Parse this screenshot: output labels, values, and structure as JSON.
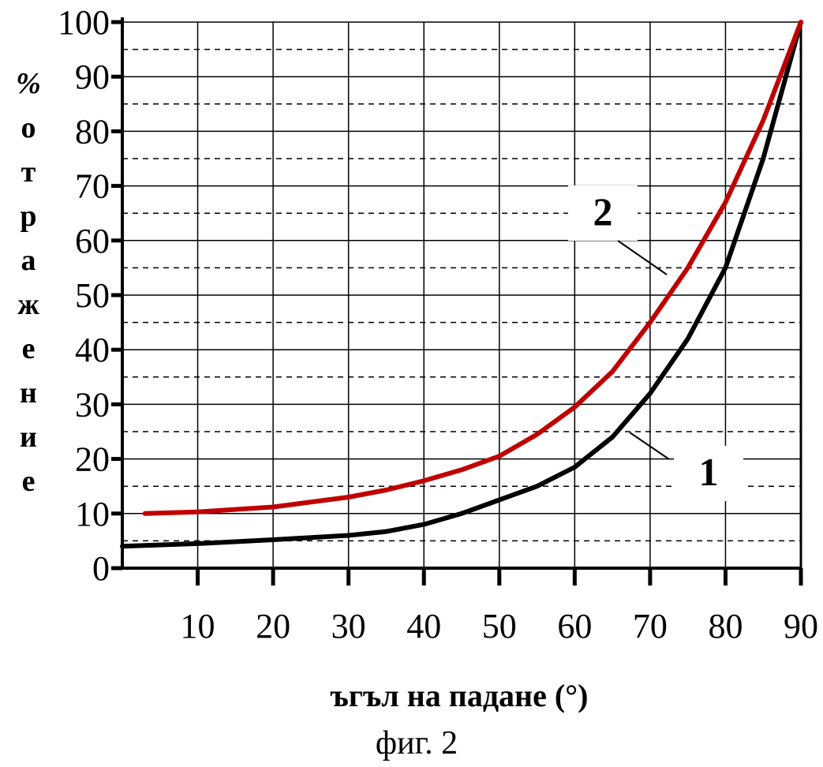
{
  "chart_data": {
    "type": "line",
    "ylabel": "% отражение",
    "ylabel_letters": [
      "%",
      "о",
      "т",
      "р",
      "а",
      "ж",
      "е",
      "н",
      "и",
      "е"
    ],
    "xlabel": "ъгъл на падане (°)",
    "caption": "фиг. 2",
    "xlim": [
      0,
      90
    ],
    "ylim": [
      0,
      100
    ],
    "x_ticks": [
      10,
      20,
      30,
      40,
      50,
      60,
      70,
      80,
      90
    ],
    "y_ticks": [
      0,
      10,
      20,
      30,
      40,
      50,
      60,
      70,
      80,
      90,
      100
    ],
    "grid": "on",
    "series": [
      {
        "name": "1",
        "color": "#000000",
        "x": [
          0,
          10,
          20,
          30,
          35,
          40,
          45,
          50,
          55,
          60,
          65,
          70,
          75,
          80,
          85,
          90
        ],
        "y": [
          4,
          4.5,
          5.2,
          6,
          6.7,
          8,
          10,
          12.5,
          15,
          18.5,
          24,
          32,
          42,
          55,
          75,
          100
        ]
      },
      {
        "name": "2",
        "color": "#c00000",
        "x": [
          3,
          10,
          20,
          30,
          35,
          40,
          45,
          50,
          55,
          60,
          65,
          70,
          75,
          80,
          85,
          90
        ],
        "y": [
          10,
          10.3,
          11.2,
          13,
          14.3,
          16,
          18,
          20.5,
          24.5,
          29.5,
          36,
          45,
          55,
          67,
          82,
          100
        ]
      }
    ]
  }
}
